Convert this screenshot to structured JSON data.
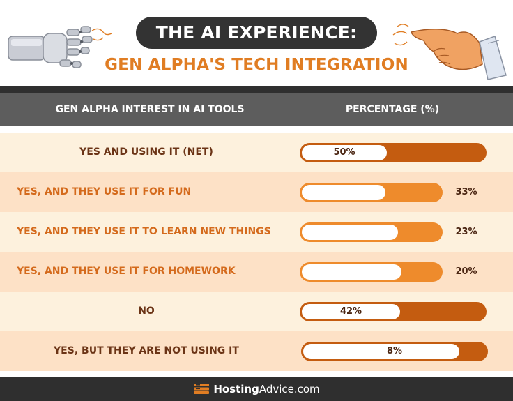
{
  "title": "THE AI EXPERIENCE:",
  "subtitle": "GEN ALPHA'S TECH INTEGRATION",
  "table": {
    "col1_header": "GEN ALPHA INTEREST IN AI TOOLS",
    "col2_header": "PERCENTAGE (%)"
  },
  "chart_data": {
    "type": "bar",
    "orientation": "horizontal",
    "categories": [
      "YES AND USING IT (NET)",
      "YES, AND THEY USE IT FOR FUN",
      "YES, AND THEY USE IT TO LEARN NEW THINGS",
      "YES, AND THEY USE IT FOR HOMEWORK",
      "NO",
      "YES, BUT THEY ARE NOT USING IT"
    ],
    "values": [
      50,
      33,
      23,
      20,
      42,
      8
    ],
    "value_labels": [
      "50%",
      "33%",
      "23%",
      "20%",
      "42%",
      "8%"
    ],
    "xlim": [
      0,
      100
    ],
    "grid": false,
    "legend": "none"
  },
  "footer": {
    "brand_part1": "Hosting",
    "brand_part2": "Advice.com"
  },
  "colors": {
    "row_light": "#fdf1dd",
    "row_dark": "#fde1c6",
    "bar_dark": "#c45c10",
    "bar_light": "#ee8b2c",
    "accent": "#e07d23",
    "header_bg": "#5d5d5d",
    "title_bg": "#333333"
  },
  "icons": {
    "left": "robot-hand-icon",
    "right": "human-hand-icon",
    "brand": "hosting-advice-logo-icon"
  }
}
